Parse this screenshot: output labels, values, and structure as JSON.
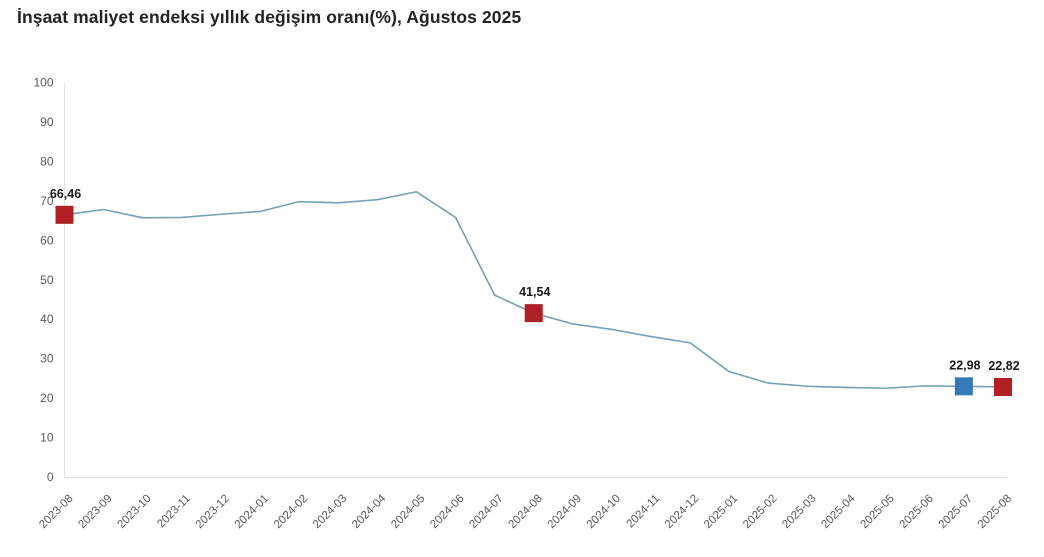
{
  "title": "İnşaat maliyet endeksi yıllık değişim oranı(%), Ağustos 2025",
  "colors": {
    "background": "#ffffff",
    "title_text": "#232323",
    "tick_text": "#595959",
    "label_text": "#1a1a1a",
    "axis_line": "#e2e2e2",
    "line": "#74a1b5",
    "marker_red": "#b01f24",
    "marker_blue": "#3578bb"
  },
  "chart_data": {
    "type": "line",
    "title": "İnşaat maliyet endeksi yıllık değişim oranı(%), Ağustos 2025",
    "x": [
      "2023-08",
      "2023-09",
      "2023-10",
      "2023-11",
      "2023-12",
      "2024-01",
      "2024-02",
      "2024-03",
      "2024-04",
      "2024-05",
      "2024-06",
      "2024-07",
      "2024-08",
      "2024-09",
      "2024-10",
      "2024-11",
      "2024-12",
      "2025-01",
      "2025-02",
      "2025-03",
      "2025-04",
      "2025-05",
      "2025-06",
      "2025-07",
      "2025-08"
    ],
    "values": [
      66.46,
      67.8,
      65.7,
      65.8,
      66.6,
      67.3,
      69.8,
      69.5,
      70.3,
      72.3,
      65.8,
      46.1,
      41.54,
      38.8,
      37.4,
      35.6,
      34.0,
      26.7,
      23.8,
      23.0,
      22.7,
      22.5,
      23.1,
      22.98,
      22.82
    ],
    "ylim": [
      0,
      100
    ],
    "y_ticks": [
      0,
      10,
      20,
      30,
      40,
      50,
      60,
      70,
      80,
      90,
      100
    ],
    "grid": false,
    "legend": "none",
    "annotations": [
      {
        "x": "2023-08",
        "value": 66.46,
        "label": "66,46",
        "marker": "square",
        "color": "red"
      },
      {
        "x": "2024-08",
        "value": 41.54,
        "label": "41,54",
        "marker": "square",
        "color": "red"
      },
      {
        "x": "2025-07",
        "value": 22.98,
        "label": "22,98",
        "marker": "square",
        "color": "blue"
      },
      {
        "x": "2025-08",
        "value": 22.82,
        "label": "22,82",
        "marker": "square",
        "color": "red"
      }
    ]
  }
}
